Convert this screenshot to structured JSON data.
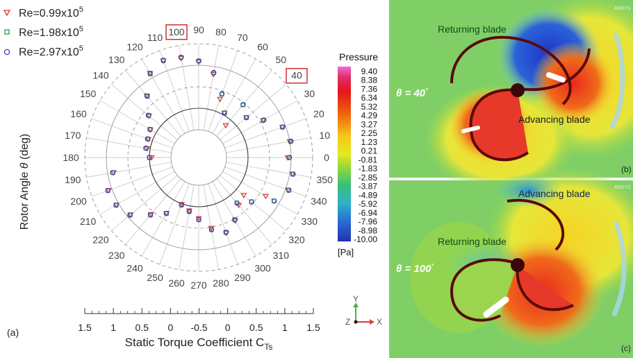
{
  "panel_a": {
    "label": "(a)",
    "ylabel_prefix": "Rotor Angle ",
    "ylabel_theta": "θ",
    "ylabel_suffix": " (deg)",
    "xlabel_main": "Static Torque Coefficient C",
    "xlabel_sub": "Ts",
    "legend": [
      {
        "base": "Re=0.99x10",
        "exp": "5",
        "color": "#e03030",
        "marker": "triangle-down"
      },
      {
        "base": "Re=1.98x10",
        "exp": "5",
        "color": "#2a9a3a",
        "marker": "square"
      },
      {
        "base": "Re=2.97x10",
        "exp": "5",
        "color": "#3b3bc4",
        "marker": "circle"
      }
    ],
    "highlighted_angles": [
      "100",
      "40"
    ],
    "highlight_color": "#d03030"
  },
  "colorbar": {
    "title": "Pressure",
    "unit": "[Pa]",
    "ticks": [
      "9.40",
      "8.38",
      "7.36",
      "6.34",
      "5.32",
      "4.29",
      "3.27",
      "2.25",
      "1.23",
      "0.21",
      "-0.81",
      "-1.83",
      "-2.85",
      "-3.87",
      "-4.89",
      "-5.92",
      "-6.94",
      "-7.96",
      "-8.98",
      "-10.00"
    ]
  },
  "axis_triad": {
    "y": "Y",
    "z": "Z",
    "x": "X"
  },
  "panel_b": {
    "label": "(b)",
    "angle_text": "θ = 40",
    "deg": "°",
    "returning_label": "Returning blade",
    "advancing_label": "Advancing blade",
    "watermark": "ANSYS"
  },
  "panel_c": {
    "label": "(c)",
    "angle_text": "θ = 100",
    "deg": "°",
    "returning_label": "Returning blade",
    "advancing_label": "Advancing blade",
    "watermark": "ANSYS"
  },
  "chart_data": {
    "type": "scatter",
    "coordinate_system": "polar",
    "theta_unit": "deg",
    "theta_ticks": [
      0,
      10,
      20,
      30,
      40,
      50,
      60,
      70,
      80,
      90,
      100,
      110,
      120,
      130,
      140,
      150,
      160,
      170,
      180,
      190,
      200,
      210,
      220,
      230,
      240,
      250,
      260,
      270,
      280,
      290,
      300,
      310,
      320,
      330,
      340,
      350
    ],
    "r_axis_ticks": [
      "1.5",
      "1",
      "0.5",
      "0",
      "-0.5",
      "0",
      "0.5",
      "1",
      "1.5"
    ],
    "r_range": [
      -0.5,
      1.5
    ],
    "xlabel": "Static Torque Coefficient C_Ts",
    "ylabel": "Rotor Angle θ (deg)",
    "grid": true,
    "legend_position": "top-left",
    "series": [
      {
        "name": "Re=0.99x10^5",
        "theta": [
          0,
          10,
          20,
          30,
          40,
          50,
          60,
          70,
          80,
          90,
          100,
          110,
          120,
          130,
          140,
          150,
          160,
          170,
          180,
          190,
          200,
          210,
          220,
          230,
          240,
          250,
          260,
          270,
          280,
          290,
          300,
          310,
          320,
          330,
          340,
          350
        ],
        "r": [
          0.92,
          1.0,
          0.92,
          0.58,
          0.3,
          -0.17,
          0.05,
          0.3,
          0.82,
          1.08,
          1.2,
          1.25,
          1.12,
          0.73,
          0.36,
          0.15,
          0.1,
          0.07,
          -0.05,
          0.86,
          1.08,
          1.06,
          0.92,
          0.58,
          0.35,
          0.01,
          0.11,
          0.27,
          0.52,
          0.72,
          0.55,
          0.3,
          0.22,
          0.65,
          1.06,
          1.06
        ]
      },
      {
        "name": "Re=1.98x10^5",
        "theta": [
          0,
          10,
          20,
          30,
          40,
          50,
          60,
          70,
          80,
          90,
          100,
          110,
          120,
          130,
          140,
          150,
          160,
          170,
          180,
          190,
          200,
          210,
          220,
          230,
          240,
          250,
          260,
          270,
          280,
          290,
          300,
          310,
          320,
          330,
          340,
          350
        ],
        "r": [
          0.95,
          1.02,
          0.92,
          0.58,
          0.3,
          0.45,
          0.05,
          0.42,
          0.85,
          1.1,
          1.22,
          1.25,
          1.1,
          0.71,
          0.37,
          0.16,
          0.11,
          0.1,
          0.0,
          0.88,
          1.1,
          1.07,
          0.93,
          0.6,
          0.35,
          0.03,
          0.13,
          0.3,
          0.55,
          0.7,
          0.52,
          0.23,
          0.45,
          0.87,
          1.08,
          1.07
        ]
      },
      {
        "name": "Re=2.97x10^5",
        "theta": [
          0,
          10,
          20,
          30,
          40,
          50,
          60,
          70,
          80,
          90,
          100,
          110,
          120,
          130,
          140,
          150,
          160,
          170,
          180,
          190,
          200,
          210,
          220,
          230,
          240,
          250,
          260,
          270,
          280,
          290,
          300,
          310,
          320,
          330,
          340,
          350
        ],
        "r": [
          0.96,
          1.03,
          0.93,
          0.6,
          0.3,
          0.46,
          0.05,
          0.43,
          0.86,
          1.1,
          1.22,
          1.26,
          1.11,
          0.72,
          0.38,
          0.16,
          0.12,
          0.1,
          0.0,
          0.88,
          1.1,
          1.07,
          0.94,
          0.6,
          0.36,
          0.03,
          0.13,
          0.3,
          0.56,
          0.71,
          0.53,
          0.24,
          0.46,
          0.88,
          1.08,
          1.08
        ]
      }
    ]
  }
}
